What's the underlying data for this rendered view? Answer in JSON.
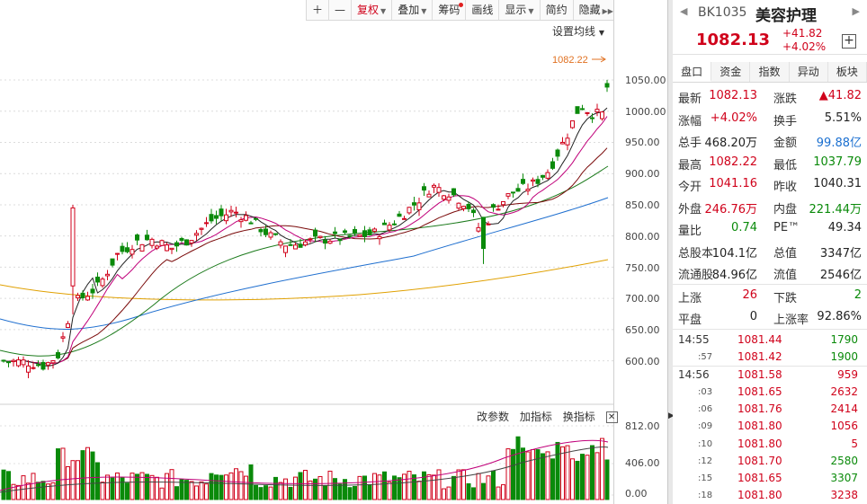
{
  "toolbar": {
    "items": [
      {
        "label": "＋"
      },
      {
        "label": "—"
      },
      {
        "label": "复权",
        "active": true
      },
      {
        "label": "叠加"
      },
      {
        "label": "筹码"
      },
      {
        "label": "画线"
      },
      {
        "label": "显示"
      },
      {
        "label": "简约"
      },
      {
        "label": "隐藏"
      }
    ]
  },
  "chart": {
    "ma_setting": "设置均线",
    "high_marker": "1082.22",
    "price_axis": [
      "1050.00",
      "1000.00",
      "950.00",
      "900.00",
      "850.00",
      "800.00",
      "750.00",
      "700.00",
      "650.00",
      "600.00"
    ],
    "volume_axis": [
      "812.00",
      "406.00",
      "0.00"
    ],
    "volume_toolbar": {
      "params": "改参数",
      "add": "加指标",
      "switch": "换指标"
    }
  },
  "quote": {
    "code": "BK1035",
    "name": "美容护理",
    "price": "1082.13",
    "change": "+41.82",
    "change_pct": "+4.02%",
    "tabs": [
      "盘口",
      "资金",
      "指数",
      "异动",
      "板块"
    ],
    "rows": [
      {
        "l1": "最新",
        "v1": "1082.13",
        "c1": "up",
        "l2": "涨跌",
        "v2": "▲41.82",
        "c2": "up"
      },
      {
        "l1": "涨幅",
        "v1": "+4.02%",
        "c1": "up",
        "l2": "换手",
        "v2": "5.51%",
        "c2": "blk"
      },
      {
        "l1": "总手",
        "v1": "468.20万",
        "c1": "blk",
        "l2": "金额",
        "v2": "99.88亿",
        "c2": "bl"
      },
      {
        "l1": "最高",
        "v1": "1082.22",
        "c1": "up",
        "l2": "最低",
        "v2": "1037.79",
        "c2": "dn"
      },
      {
        "l1": "今开",
        "v1": "1041.16",
        "c1": "up",
        "l2": "昨收",
        "v2": "1040.31",
        "c2": "blk"
      },
      {
        "l1": "外盘",
        "v1": "246.76万",
        "c1": "up",
        "l2": "内盘",
        "v2": "221.44万",
        "c2": "dn"
      },
      {
        "l1": "量比",
        "v1": "0.74",
        "c1": "dn",
        "l2": "PE™",
        "v2": "49.34",
        "c2": "blk"
      },
      {
        "l1": "总股本",
        "v1": "104.1亿",
        "c1": "blk",
        "l2": "总值",
        "v2": "3347亿",
        "c2": "blk"
      },
      {
        "l1": "流通股",
        "v1": "84.96亿",
        "c1": "blk",
        "l2": "流值",
        "v2": "2546亿",
        "c2": "blk"
      },
      {
        "l1": "上涨",
        "v1": "26",
        "c1": "up",
        "l2": "下跌",
        "v2": "2",
        "c2": "dn"
      },
      {
        "l1": "平盘",
        "v1": "0",
        "c1": "blk",
        "l2": "上涨率",
        "v2": "92.86%",
        "c2": "blk"
      }
    ],
    "ticks": [
      {
        "t": "14:55",
        "p": "1081.44",
        "v": "1790",
        "c": "dn",
        "small": false
      },
      {
        "t": ":57",
        "p": "1081.42",
        "v": "1900",
        "c": "dn",
        "small": true
      },
      {
        "t": "14:56",
        "p": "1081.58",
        "v": "959",
        "c": "up",
        "small": false
      },
      {
        "t": ":03",
        "p": "1081.65",
        "v": "2632",
        "c": "up",
        "small": true
      },
      {
        "t": ":06",
        "p": "1081.76",
        "v": "2414",
        "c": "up",
        "small": true
      },
      {
        "t": ":09",
        "p": "1081.80",
        "v": "1056",
        "c": "up",
        "small": true
      },
      {
        "t": ":10",
        "p": "1081.80",
        "v": "5",
        "c": "up",
        "small": true
      },
      {
        "t": ":12",
        "p": "1081.70",
        "v": "2580",
        "c": "dn",
        "small": true
      },
      {
        "t": ":15",
        "p": "1081.65",
        "v": "3307",
        "c": "dn",
        "small": true
      },
      {
        "t": ":18",
        "p": "1081.80",
        "v": "3238",
        "c": "up",
        "small": true
      }
    ]
  },
  "colors": {
    "up": "#d0021b",
    "down": "#0a8a0a",
    "ma5": "#222222",
    "ma10": "#c0007a",
    "ma20": "#7a0a0a",
    "ma30": "#1b7a1b",
    "ma60": "#1f6fcf",
    "ma120": "#e0a000"
  }
}
